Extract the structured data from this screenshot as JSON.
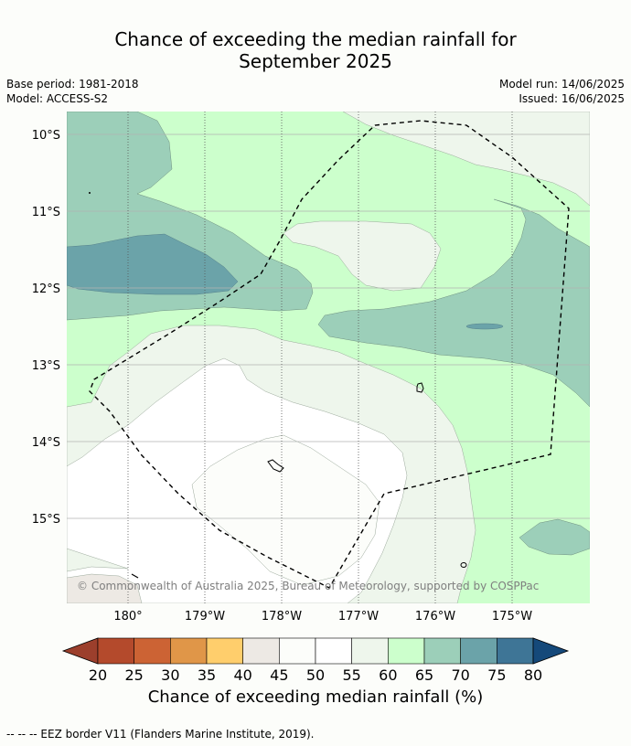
{
  "title_line1": "Chance of exceeding the median rainfall for",
  "title_line2": "September 2025",
  "base_period": "Base period: 1981-2018",
  "model": "Model: ACCESS-S2",
  "model_run": "Model run: 14/06/2025",
  "issued": "Issued: 16/06/2025",
  "lat_labels": [
    "10°S",
    "11°S",
    "12°S",
    "13°S",
    "14°S",
    "15°S"
  ],
  "lon_labels": [
    "180°",
    "179°W",
    "178°W",
    "177°W",
    "176°W",
    "175°W"
  ],
  "copyright": "© Commonwealth of Australia 2025, Bureau of Meteorology, supported by COSPPac",
  "colorbar": {
    "ticks": [
      "20",
      "25",
      "30",
      "35",
      "40",
      "45",
      "50",
      "55",
      "60",
      "65",
      "70",
      "75",
      "80"
    ],
    "colors": [
      "#b44a2c",
      "#cc6334",
      "#e09648",
      "#ffce6c",
      "#ede9e4",
      "#fcfdfa",
      "#ffffff",
      "#eef6ec",
      "#ccffcc",
      "#9ccfb9",
      "#6ba3a9",
      "#3e7596"
    ],
    "under_color": "#9c3f2c",
    "over_color": "#15497a",
    "label": "Chance of exceeding median rainfall (%)"
  },
  "footnote": "--  --  -- EEZ border V11 (Flanders Marine Institute, 2019)."
}
